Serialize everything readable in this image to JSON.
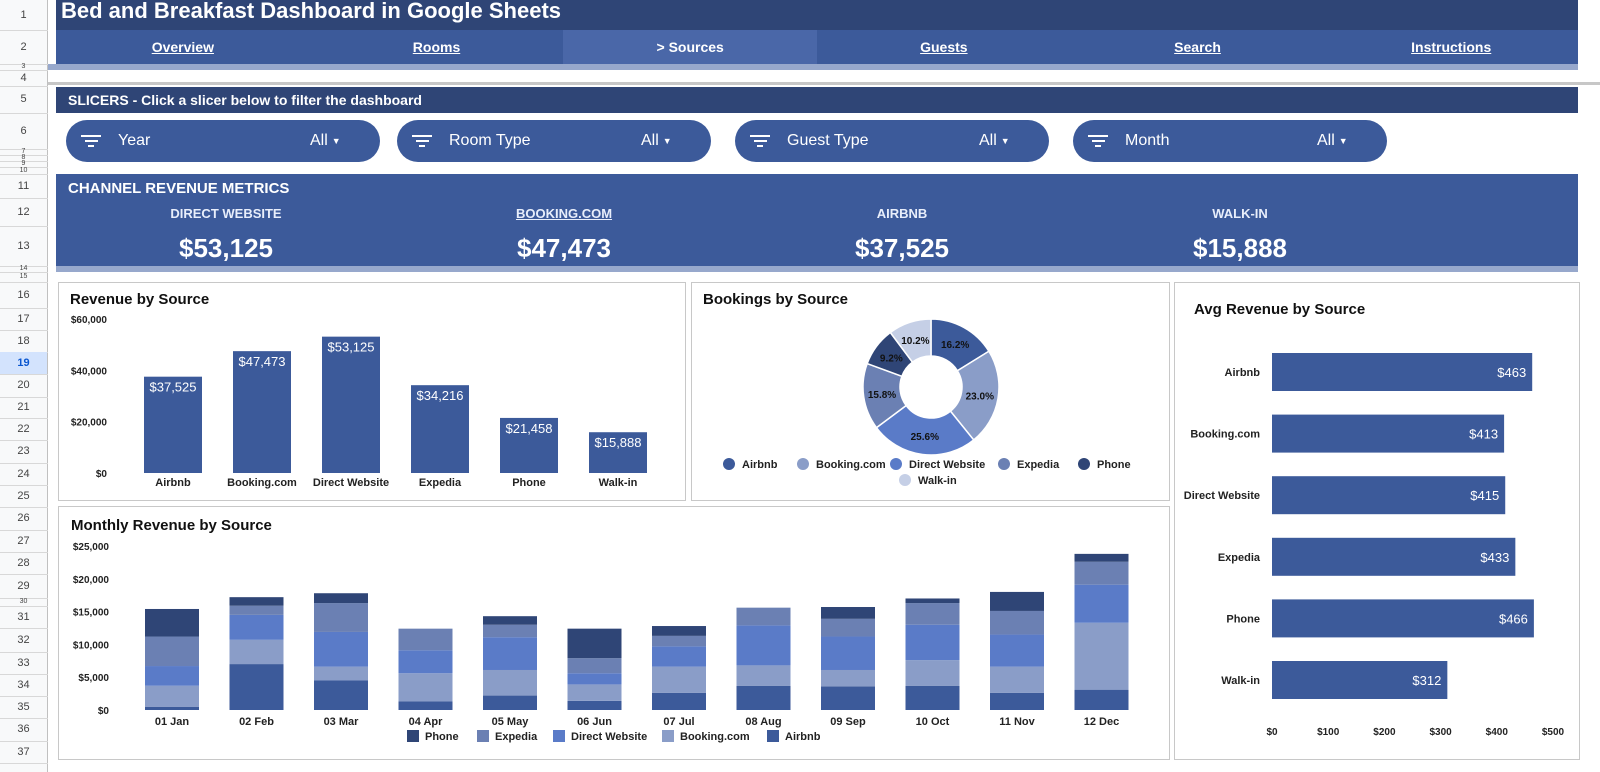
{
  "sheet": {
    "row_numbers": [
      "1",
      "2",
      "3",
      "4",
      "5",
      "6",
      "7",
      "8",
      "9",
      "10",
      "11",
      "12",
      "13",
      "14",
      "15",
      "16",
      "17",
      "18",
      "19",
      "20",
      "21",
      "22",
      "23",
      "24",
      "25",
      "26",
      "27",
      "28",
      "29",
      "30",
      "31",
      "32",
      "33",
      "34",
      "35",
      "36",
      "37"
    ],
    "selected_row": "19"
  },
  "header": {
    "title": "Bed and Breakfast Dashboard in Google Sheets"
  },
  "nav": {
    "items": [
      {
        "label": "Overview"
      },
      {
        "label": "Rooms"
      },
      {
        "label": "> Sources"
      },
      {
        "label": "Guests"
      },
      {
        "label": "Search"
      },
      {
        "label": "Instructions"
      }
    ],
    "active_index": 2
  },
  "slicers": {
    "heading": "SLICERS - Click a slicer below to filter the dashboard",
    "items": [
      {
        "name": "Year",
        "value": "All"
      },
      {
        "name": "Room Type",
        "value": "All"
      },
      {
        "name": "Guest Type",
        "value": "All"
      },
      {
        "name": "Month",
        "value": "All"
      }
    ],
    "icon": "filter-icon"
  },
  "metrics": {
    "heading": "CHANNEL REVENUE METRICS",
    "items": [
      {
        "label": "DIRECT WEBSITE",
        "value": "$53,125"
      },
      {
        "label": "BOOKING.COM",
        "value": "$47,473"
      },
      {
        "label": "AIRBNB",
        "value": "$37,525"
      },
      {
        "label": "WALK-IN",
        "value": "$15,888"
      }
    ]
  },
  "colors": {
    "dark_header": "#2f4576",
    "primary": "#3c5a9a",
    "band": "#97a8cc",
    "Airbnb": "#3c5a9a",
    "Booking.com": "#8a9dc8",
    "Direct Website": "#5a7bc8",
    "Expedia": "#6b80b3",
    "Phone": "#2f4576",
    "Walk-in": "#c5cfe6"
  },
  "chart_data": [
    {
      "id": "revenue_by_source",
      "type": "bar",
      "title": "Revenue by Source",
      "categories": [
        "Airbnb",
        "Booking.com",
        "Direct Website",
        "Expedia",
        "Phone",
        "Walk-in"
      ],
      "values": [
        37525,
        47473,
        53125,
        34216,
        21458,
        15888
      ],
      "data_labels": [
        "$37,525",
        "$47,473",
        "$53,125",
        "$34,216",
        "$21,458",
        "$15,888"
      ],
      "yticks": [
        "$0",
        "$20,000",
        "$40,000",
        "$60,000"
      ],
      "ylim": [
        0,
        60000
      ]
    },
    {
      "id": "bookings_by_source",
      "type": "pie",
      "title": "Bookings by Source",
      "categories": [
        "Airbnb",
        "Booking.com",
        "Direct Website",
        "Expedia",
        "Phone",
        "Walk-in"
      ],
      "values": [
        16.2,
        23.0,
        25.6,
        15.8,
        9.2,
        10.2
      ],
      "data_labels": [
        "16.2%",
        "23.0%",
        "25.6%",
        "15.8%",
        "9.2%",
        "10.2%"
      ],
      "legend": "bottom"
    },
    {
      "id": "avg_revenue_by_source",
      "type": "bar",
      "orientation": "horizontal",
      "title": "Avg Revenue by Source",
      "categories": [
        "Airbnb",
        "Booking.com",
        "Direct Website",
        "Expedia",
        "Phone",
        "Walk-in"
      ],
      "values": [
        463,
        413,
        415,
        433,
        466,
        312
      ],
      "data_labels": [
        "$463",
        "$413",
        "$415",
        "$433",
        "$466",
        "$312"
      ],
      "xticks": [
        "$0",
        "$100",
        "$200",
        "$300",
        "$400",
        "$500"
      ],
      "xlim": [
        0,
        500
      ]
    },
    {
      "id": "monthly_revenue_by_source",
      "type": "bar",
      "stacked": true,
      "title": "Monthly Revenue by Source",
      "categories": [
        "01 Jan",
        "02 Feb",
        "03 Mar",
        "04 Apr",
        "05 May",
        "06 Jun",
        "07 Jul",
        "08 Aug",
        "09 Sep",
        "10 Oct",
        "11 Nov",
        "12 Dec"
      ],
      "series": [
        {
          "name": "Airbnb",
          "values": [
            500,
            7000,
            4500,
            1300,
            2200,
            1400,
            2600,
            3700,
            3600,
            3700,
            2600,
            3100
          ]
        },
        {
          "name": "Booking.com",
          "values": [
            3200,
            3700,
            2100,
            4300,
            3900,
            2500,
            4000,
            3100,
            2500,
            3900,
            4000,
            10200
          ]
        },
        {
          "name": "Direct Website",
          "values": [
            3000,
            3800,
            5300,
            3500,
            5000,
            1700,
            3100,
            6100,
            5100,
            5400,
            4900,
            5800
          ]
        },
        {
          "name": "Expedia",
          "values": [
            4500,
            1400,
            4400,
            3300,
            1900,
            2300,
            1600,
            2700,
            2700,
            3300,
            3600,
            3500
          ]
        },
        {
          "name": "Phone",
          "values": [
            4200,
            1300,
            1500,
            0,
            1300,
            4500,
            1500,
            0,
            1800,
            700,
            2900,
            1200
          ]
        }
      ],
      "legend_order": [
        "Phone",
        "Expedia",
        "Direct Website",
        "Booking.com",
        "Airbnb"
      ],
      "yticks": [
        "$0",
        "$5,000",
        "$10,000",
        "$15,000",
        "$20,000",
        "$25,000"
      ],
      "ylim": [
        0,
        25000
      ]
    }
  ]
}
